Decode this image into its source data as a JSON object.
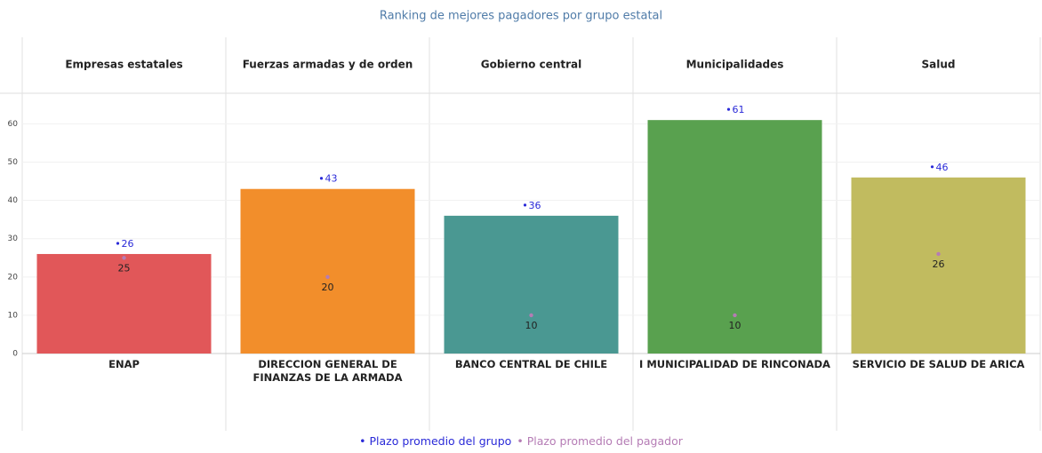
{
  "chart_data": {
    "type": "bar",
    "title": "Ranking de mejores pagadores por grupo estatal",
    "groups": [
      "Empresas estatales",
      "Fuerzas armadas y de orden",
      "Gobierno central",
      "Municipalidades",
      "Salud"
    ],
    "categories": [
      "ENAP",
      "DIRECCION GENERAL DE FINANZAS DE LA ARMADA",
      "BANCO CENTRAL DE CHILE",
      "I MUNICIPALIDAD DE RINCONADA",
      "SERVICIO DE SALUD DE ARICA"
    ],
    "series": [
      {
        "name": "Plazo promedio del grupo",
        "color": "#2a2ad8",
        "bar_colors": [
          "#e15759",
          "#f28e2b",
          "#4a9892",
          "#59a14f",
          "#c1bb5f"
        ],
        "values": [
          26,
          43,
          36,
          61,
          46
        ]
      },
      {
        "name": "Plazo promedio del pagador",
        "color": "#b57cb5",
        "values": [
          25,
          20,
          10,
          10,
          26
        ]
      }
    ],
    "ylim": [
      0,
      68
    ],
    "yticks": [
      0,
      10,
      20,
      30,
      40,
      50,
      60
    ],
    "grid": true
  }
}
